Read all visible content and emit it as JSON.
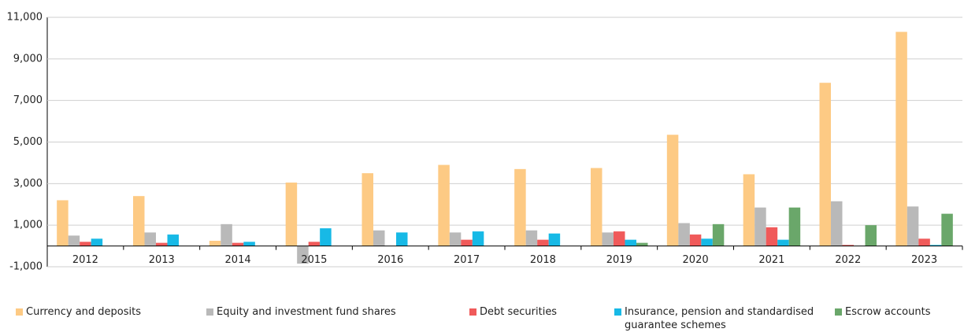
{
  "chart_data": {
    "type": "bar",
    "categories": [
      "2012",
      "2013",
      "2014",
      "2015",
      "2016",
      "2017",
      "2018",
      "2019",
      "2020",
      "2021",
      "2022",
      "2023"
    ],
    "series": [
      {
        "name": "Currency and deposits",
        "color": "#fdca84",
        "values": [
          2200,
          2400,
          250,
          3050,
          3500,
          3900,
          3700,
          3750,
          5350,
          3450,
          7850,
          10300
        ]
      },
      {
        "name": "Equity and investment fund shares",
        "color": "#b9b9b9",
        "values": [
          500,
          650,
          1050,
          -850,
          750,
          650,
          750,
          650,
          1100,
          1850,
          2150,
          1900
        ]
      },
      {
        "name": "Debt securities",
        "color": "#f05a5a",
        "values": [
          200,
          150,
          150,
          200,
          0,
          300,
          300,
          700,
          550,
          900,
          50,
          350
        ]
      },
      {
        "name": "Insurance, pension and standardised guarantee schemes",
        "color": "#17b9e6",
        "values": [
          350,
          550,
          200,
          850,
          650,
          700,
          600,
          300,
          350,
          300,
          0,
          50
        ]
      },
      {
        "name": "Escrow accounts",
        "color": "#6aa76a",
        "values": [
          0,
          0,
          0,
          0,
          0,
          0,
          0,
          150,
          1050,
          1850,
          1000,
          1550
        ]
      }
    ],
    "ylim": [
      -1000,
      11000
    ],
    "yticks": [
      {
        "value": -1000,
        "label": "-1,000"
      },
      {
        "value": 1000,
        "label": "1,000"
      },
      {
        "value": 3000,
        "label": "3,000"
      },
      {
        "value": 5000,
        "label": "5,000"
      },
      {
        "value": 7000,
        "label": "7,000"
      },
      {
        "value": 9000,
        "label": "9,000"
      },
      {
        "value": 11000,
        "label": "11,000"
      }
    ],
    "grid": true
  }
}
